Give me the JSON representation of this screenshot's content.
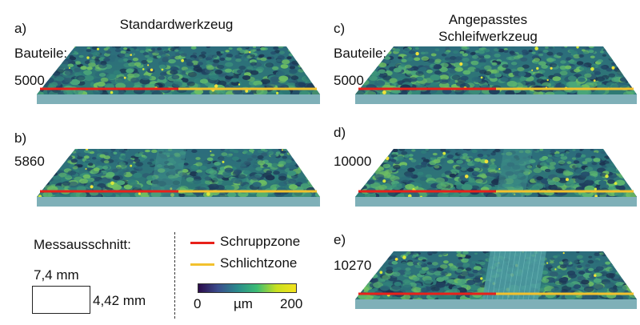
{
  "columns": {
    "left_title": "Standardwerkzeug",
    "right_title": [
      "Angepasstes",
      "Schleifwerkzeug"
    ]
  },
  "panels": [
    {
      "id": "a",
      "label": "a)",
      "caption_lines": [
        "Bauteile:",
        "5000"
      ],
      "variant": "standard-a"
    },
    {
      "id": "b",
      "label": "b)",
      "caption_lines": [
        "5860"
      ],
      "variant": "standard-b"
    },
    {
      "id": "c",
      "label": "c)",
      "caption_lines": [
        "Bauteile:",
        "5000"
      ],
      "variant": "adapted-c"
    },
    {
      "id": "d",
      "label": "d)",
      "caption_lines": [
        "10000"
      ],
      "variant": "adapted-d"
    },
    {
      "id": "e",
      "label": "e)",
      "caption_lines": [
        "10270"
      ],
      "variant": "adapted-e"
    }
  ],
  "measurement": {
    "title": "Messausschnitt:",
    "width_label": "7,4 mm",
    "height_label": "4,42 mm"
  },
  "legend": {
    "items": [
      {
        "label": "Schruppzone",
        "color": "#e8211a"
      },
      {
        "label": "Schlichtzone",
        "color": "#f2c12e"
      }
    ]
  },
  "colorbar": {
    "min_label": "0",
    "unit_label": "µm",
    "max_label": "200",
    "colors": [
      "#2b0a4a",
      "#3a4c8c",
      "#2a8a8c",
      "#3cbc74",
      "#c8e020",
      "#f4e21e"
    ]
  }
}
